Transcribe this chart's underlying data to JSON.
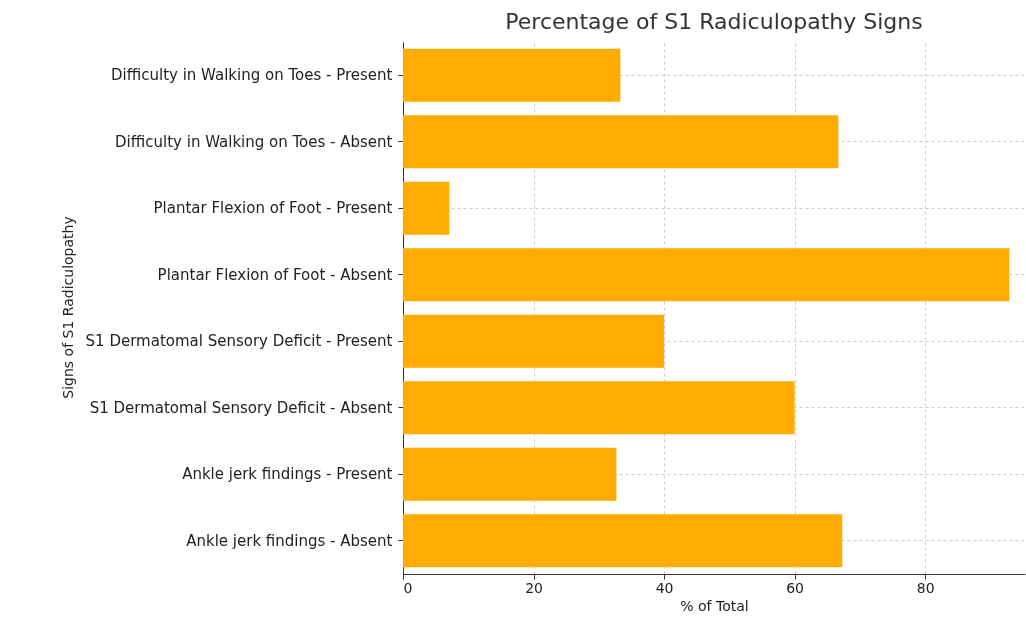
{
  "chart_data": {
    "type": "bar",
    "orientation": "horizontal",
    "title": "Percentage of S1 Radiculopathy Signs",
    "xlabel": "% of Total",
    "ylabel": "Signs of S1 Radiculopathy",
    "categories": [
      "Difficulty in Walking on Toes - Present",
      "Difficulty in Walking on Toes - Absent",
      "Plantar Flexion of Foot - Present",
      "Plantar Flexion of Foot - Absent",
      "S1 Dermatomal Sensory Deficit - Present",
      "S1 Dermatomal Sensory Deficit - Absent",
      "Ankle jerk findings - Present",
      "Ankle jerk findings - Absent"
    ],
    "values": [
      33.3,
      66.7,
      7.1,
      92.9,
      40,
      60,
      32.7,
      67.3
    ],
    "color": "#ffab00",
    "xlim": [
      0,
      95.3
    ],
    "xticks": [
      0,
      20,
      40,
      60,
      80
    ],
    "grid": true
  }
}
